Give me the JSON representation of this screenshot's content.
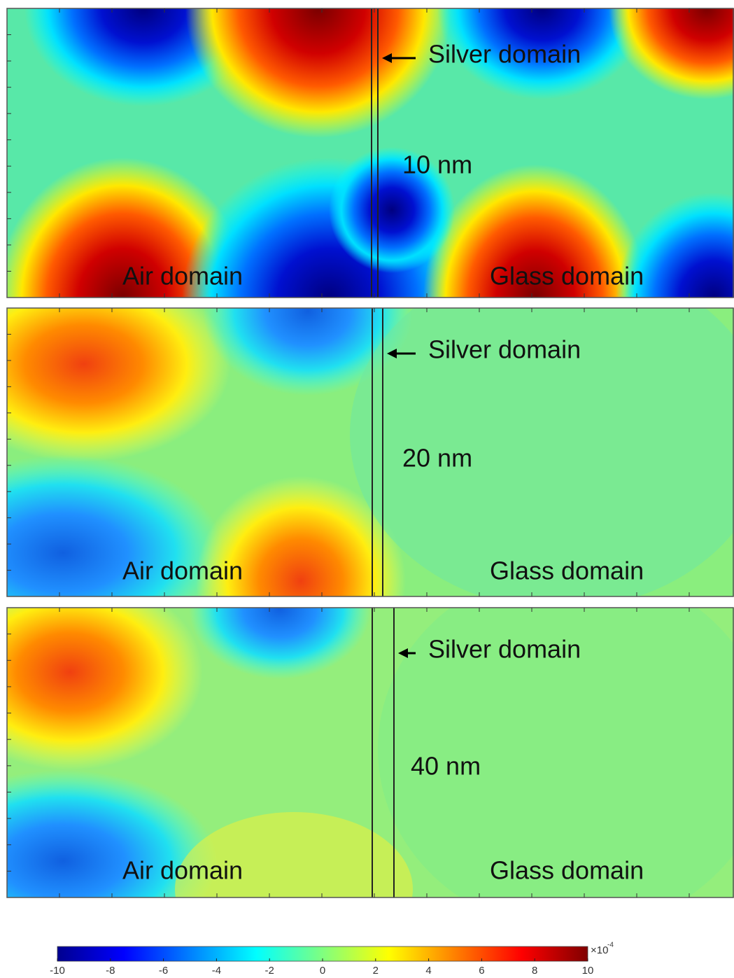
{
  "panels": [
    {
      "silver_label": "Silver domain",
      "thickness": "10 nm",
      "air_label": "Air domain",
      "glass_label": "Glass domain"
    },
    {
      "silver_label": "Silver domain",
      "thickness": "20 nm",
      "air_label": "Air domain",
      "glass_label": "Glass domain"
    },
    {
      "silver_label": "Silver domain",
      "thickness": "40 nm",
      "air_label": "Air domain",
      "glass_label": "Glass domain"
    }
  ],
  "colorbar": {
    "lim": [
      -10,
      10
    ],
    "ticks": [
      -10,
      -8,
      -6,
      -4,
      -2,
      0,
      2,
      4,
      6,
      8,
      10
    ],
    "multiplier": "×10",
    "exponent": "-4"
  }
}
